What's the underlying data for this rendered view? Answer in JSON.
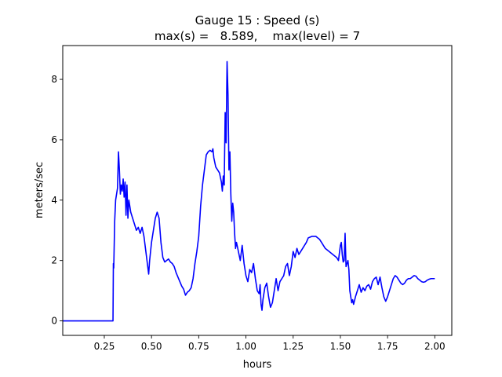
{
  "chart_data": {
    "type": "line",
    "title_line1": "Gauge 15 : Speed (s)",
    "title_line2": "max(s) =   8.589,    max(level) = 7",
    "xlabel": "hours",
    "ylabel": "meters/sec",
    "xlim": [
      0.03,
      2.09
    ],
    "ylim": [
      -0.48,
      9.12
    ],
    "xticks": [
      0.25,
      0.5,
      0.75,
      1.0,
      1.25,
      1.5,
      1.75,
      2.0
    ],
    "xtick_labels": [
      "0.25",
      "0.50",
      "0.75",
      "1.00",
      "1.25",
      "1.50",
      "1.75",
      "2.00"
    ],
    "yticks": [
      0,
      2,
      4,
      6,
      8
    ],
    "ytick_labels": [
      "0",
      "2",
      "4",
      "6",
      "8"
    ],
    "grid": false,
    "series": [
      {
        "color": "#0000ff",
        "points": [
          [
            0.03,
            0.0
          ],
          [
            0.1,
            0.0
          ],
          [
            0.2,
            0.0
          ],
          [
            0.296,
            0.0
          ],
          [
            0.298,
            1.9
          ],
          [
            0.3,
            1.75
          ],
          [
            0.305,
            3.3
          ],
          [
            0.31,
            4.0
          ],
          [
            0.315,
            4.2
          ],
          [
            0.32,
            4.4
          ],
          [
            0.325,
            5.6
          ],
          [
            0.33,
            5.0
          ],
          [
            0.335,
            4.2
          ],
          [
            0.34,
            4.5
          ],
          [
            0.345,
            4.3
          ],
          [
            0.35,
            4.7
          ],
          [
            0.355,
            4.1
          ],
          [
            0.36,
            4.6
          ],
          [
            0.365,
            3.5
          ],
          [
            0.37,
            4.5
          ],
          [
            0.375,
            3.4
          ],
          [
            0.38,
            4.0
          ],
          [
            0.39,
            3.6
          ],
          [
            0.4,
            3.4
          ],
          [
            0.41,
            3.2
          ],
          [
            0.42,
            3.0
          ],
          [
            0.43,
            3.1
          ],
          [
            0.44,
            2.9
          ],
          [
            0.45,
            3.1
          ],
          [
            0.46,
            2.8
          ],
          [
            0.47,
            2.3
          ],
          [
            0.48,
            1.8
          ],
          [
            0.485,
            1.55
          ],
          [
            0.49,
            2.0
          ],
          [
            0.5,
            2.6
          ],
          [
            0.51,
            3.0
          ],
          [
            0.52,
            3.4
          ],
          [
            0.53,
            3.6
          ],
          [
            0.54,
            3.4
          ],
          [
            0.55,
            2.6
          ],
          [
            0.56,
            2.1
          ],
          [
            0.57,
            1.95
          ],
          [
            0.58,
            2.0
          ],
          [
            0.59,
            2.05
          ],
          [
            0.6,
            1.95
          ],
          [
            0.61,
            1.9
          ],
          [
            0.62,
            1.8
          ],
          [
            0.63,
            1.6
          ],
          [
            0.64,
            1.45
          ],
          [
            0.65,
            1.3
          ],
          [
            0.66,
            1.15
          ],
          [
            0.67,
            1.05
          ],
          [
            0.68,
            0.85
          ],
          [
            0.69,
            0.95
          ],
          [
            0.7,
            1.0
          ],
          [
            0.71,
            1.1
          ],
          [
            0.72,
            1.4
          ],
          [
            0.73,
            1.9
          ],
          [
            0.74,
            2.3
          ],
          [
            0.75,
            2.8
          ],
          [
            0.76,
            3.8
          ],
          [
            0.77,
            4.5
          ],
          [
            0.78,
            5.0
          ],
          [
            0.79,
            5.5
          ],
          [
            0.8,
            5.6
          ],
          [
            0.81,
            5.65
          ],
          [
            0.82,
            5.6
          ],
          [
            0.825,
            5.7
          ],
          [
            0.83,
            5.4
          ],
          [
            0.84,
            5.1
          ],
          [
            0.85,
            5.0
          ],
          [
            0.86,
            4.9
          ],
          [
            0.87,
            4.6
          ],
          [
            0.875,
            4.3
          ],
          [
            0.88,
            4.8
          ],
          [
            0.885,
            4.5
          ],
          [
            0.89,
            6.9
          ],
          [
            0.895,
            5.9
          ],
          [
            0.9,
            8.589
          ],
          [
            0.905,
            7.5
          ],
          [
            0.91,
            5.0
          ],
          [
            0.915,
            5.6
          ],
          [
            0.92,
            4.2
          ],
          [
            0.925,
            3.3
          ],
          [
            0.93,
            3.9
          ],
          [
            0.935,
            3.6
          ],
          [
            0.94,
            2.9
          ],
          [
            0.945,
            2.4
          ],
          [
            0.95,
            2.6
          ],
          [
            0.96,
            2.3
          ],
          [
            0.97,
            2.0
          ],
          [
            0.98,
            2.5
          ],
          [
            0.99,
            1.9
          ],
          [
            1.0,
            1.5
          ],
          [
            1.01,
            1.3
          ],
          [
            1.02,
            1.7
          ],
          [
            1.03,
            1.6
          ],
          [
            1.04,
            1.9
          ],
          [
            1.05,
            1.4
          ],
          [
            1.06,
            1.0
          ],
          [
            1.07,
            0.9
          ],
          [
            1.075,
            1.2
          ],
          [
            1.08,
            0.55
          ],
          [
            1.085,
            0.35
          ],
          [
            1.09,
            0.7
          ],
          [
            1.1,
            1.1
          ],
          [
            1.11,
            1.25
          ],
          [
            1.12,
            0.8
          ],
          [
            1.13,
            0.45
          ],
          [
            1.14,
            0.6
          ],
          [
            1.15,
            1.0
          ],
          [
            1.16,
            1.4
          ],
          [
            1.17,
            1.0
          ],
          [
            1.18,
            1.3
          ],
          [
            1.19,
            1.4
          ],
          [
            1.2,
            1.5
          ],
          [
            1.21,
            1.8
          ],
          [
            1.22,
            1.9
          ],
          [
            1.23,
            1.5
          ],
          [
            1.24,
            1.8
          ],
          [
            1.25,
            2.3
          ],
          [
            1.26,
            2.1
          ],
          [
            1.27,
            2.4
          ],
          [
            1.28,
            2.2
          ],
          [
            1.29,
            2.3
          ],
          [
            1.3,
            2.4
          ],
          [
            1.31,
            2.5
          ],
          [
            1.32,
            2.6
          ],
          [
            1.33,
            2.75
          ],
          [
            1.35,
            2.8
          ],
          [
            1.37,
            2.8
          ],
          [
            1.38,
            2.75
          ],
          [
            1.39,
            2.7
          ],
          [
            1.4,
            2.6
          ],
          [
            1.42,
            2.4
          ],
          [
            1.44,
            2.3
          ],
          [
            1.46,
            2.2
          ],
          [
            1.48,
            2.1
          ],
          [
            1.49,
            2.0
          ],
          [
            1.5,
            2.5
          ],
          [
            1.505,
            2.6
          ],
          [
            1.51,
            2.2
          ],
          [
            1.515,
            1.95
          ],
          [
            1.52,
            2.0
          ],
          [
            1.525,
            2.9
          ],
          [
            1.53,
            1.8
          ],
          [
            1.54,
            2.0
          ],
          [
            1.545,
            1.7
          ],
          [
            1.55,
            1.0
          ],
          [
            1.56,
            0.6
          ],
          [
            1.565,
            0.7
          ],
          [
            1.57,
            0.55
          ],
          [
            1.58,
            0.8
          ],
          [
            1.59,
            1.0
          ],
          [
            1.6,
            1.2
          ],
          [
            1.61,
            0.95
          ],
          [
            1.62,
            1.1
          ],
          [
            1.63,
            1.0
          ],
          [
            1.64,
            1.15
          ],
          [
            1.65,
            1.2
          ],
          [
            1.66,
            1.05
          ],
          [
            1.67,
            1.3
          ],
          [
            1.68,
            1.4
          ],
          [
            1.69,
            1.45
          ],
          [
            1.7,
            1.2
          ],
          [
            1.71,
            1.45
          ],
          [
            1.72,
            1.1
          ],
          [
            1.73,
            0.8
          ],
          [
            1.74,
            0.65
          ],
          [
            1.75,
            0.8
          ],
          [
            1.76,
            1.0
          ],
          [
            1.77,
            1.2
          ],
          [
            1.78,
            1.4
          ],
          [
            1.79,
            1.5
          ],
          [
            1.8,
            1.45
          ],
          [
            1.81,
            1.35
          ],
          [
            1.82,
            1.25
          ],
          [
            1.83,
            1.2
          ],
          [
            1.84,
            1.25
          ],
          [
            1.85,
            1.35
          ],
          [
            1.86,
            1.4
          ],
          [
            1.87,
            1.4
          ],
          [
            1.88,
            1.45
          ],
          [
            1.89,
            1.5
          ],
          [
            1.9,
            1.48
          ],
          [
            1.91,
            1.4
          ],
          [
            1.92,
            1.35
          ],
          [
            1.93,
            1.3
          ],
          [
            1.94,
            1.28
          ],
          [
            1.95,
            1.3
          ],
          [
            1.96,
            1.35
          ],
          [
            1.97,
            1.38
          ],
          [
            1.98,
            1.4
          ],
          [
            2.0,
            1.4
          ]
        ]
      }
    ]
  }
}
